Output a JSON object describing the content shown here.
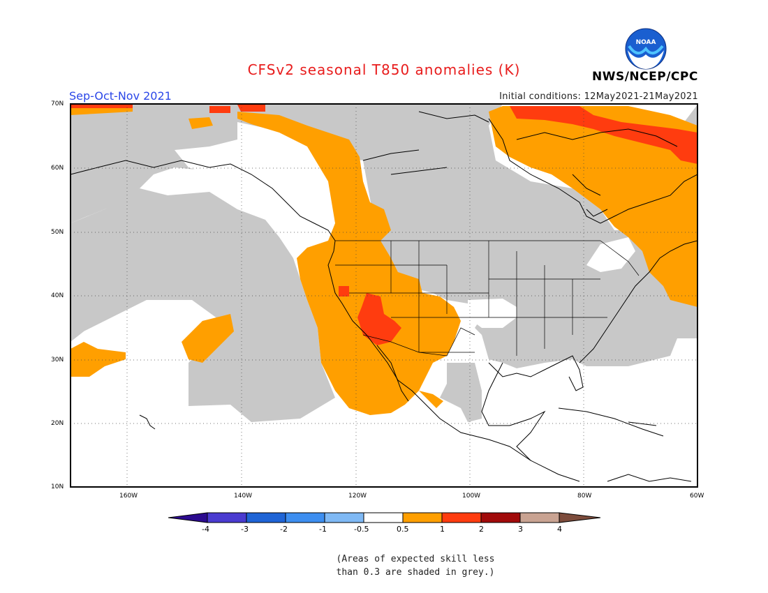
{
  "header": {
    "title": "CFSv2 seasonal T850 anomalies (K)",
    "season": "Sep-Oct-Nov 2021",
    "initial_conditions": "Initial conditions: 12May2021-21May2021",
    "agency": "NWS/NCEP/CPC",
    "logo_text": "NOAA"
  },
  "map": {
    "latitude_labels": [
      "70N",
      "60N",
      "50N",
      "40N",
      "30N",
      "20N",
      "10N"
    ],
    "longitude_labels": [
      "160W",
      "140W",
      "120W",
      "100W",
      "80W",
      "60W"
    ],
    "region": "North America and Northeast Pacific"
  },
  "colorbar": {
    "labels": [
      "-4",
      "-3",
      "-2",
      "-1",
      "-0.5",
      "0.5",
      "1",
      "2",
      "3",
      "4"
    ],
    "colors": [
      "#2c0b8f",
      "#4a3bd0",
      "#1f64d6",
      "#3d8ef0",
      "#7fb9f5",
      "#ffffff",
      "#ff9f00",
      "#ff3c0f",
      "#a10a0a",
      "#c9a392",
      "#7d4c3c"
    ]
  },
  "colors": {
    "grey_shading": "#c8c8c8",
    "anomaly_05_1": "#ff9f00",
    "anomaly_1_2": "#ff3c0f"
  },
  "footnote": "(Areas of expected skill less\nthan 0.3 are shaded in grey.)"
}
